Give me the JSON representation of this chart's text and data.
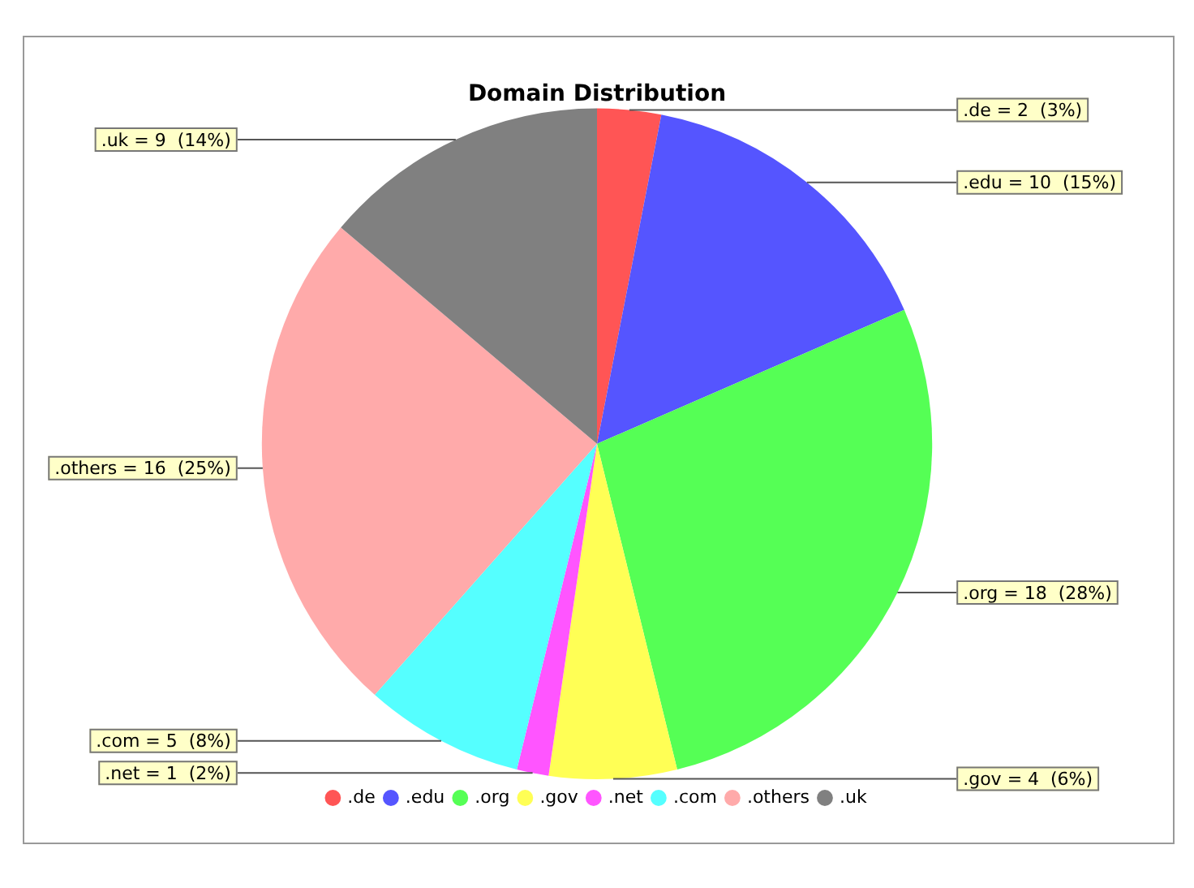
{
  "chart_data": {
    "type": "pie",
    "title": "Domain Distribution",
    "categories": [
      ".de",
      ".edu",
      ".org",
      ".gov",
      ".net",
      ".com",
      ".others",
      ".uk"
    ],
    "values": [
      2,
      10,
      18,
      4,
      1,
      5,
      16,
      9
    ],
    "colors": [
      "#ff5555",
      "#5555ff",
      "#55ff55",
      "#ffff55",
      "#ff55ff",
      "#55ffff",
      "#ffaaaa",
      "#808080"
    ],
    "value_labels": [
      ".de = 2  (3%)",
      ".edu = 10  (15%)",
      ".org = 18  (28%)",
      ".gov = 4  (6%)",
      ".net = 1  (2%)",
      ".com = 5  (8%)",
      ".others = 16  (25%)",
      ".uk = 9  (14%)"
    ],
    "legend": "bottom"
  }
}
